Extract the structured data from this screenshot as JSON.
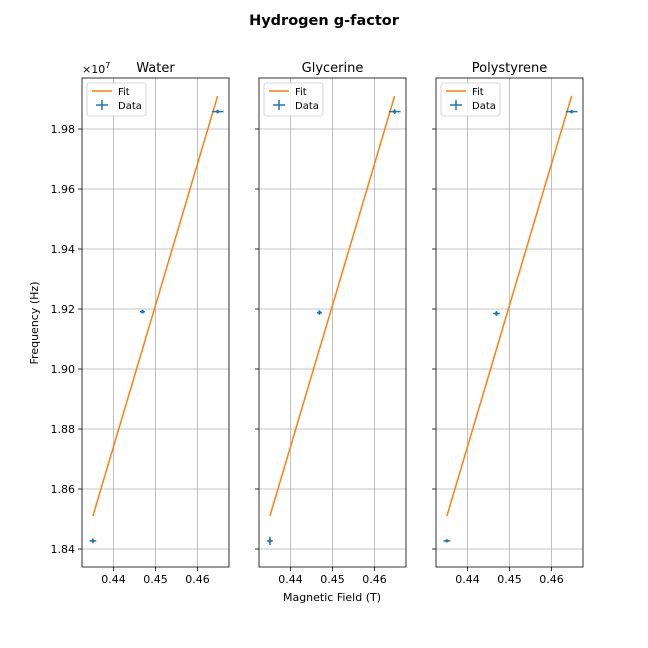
{
  "figure": {
    "suptitle": "Hydrogen g-factor",
    "xlabel": "Magnetic Field (T)",
    "ylabel": "Frequency (Hz)",
    "y_offset_text": "×10",
    "y_offset_exp": "7"
  },
  "colors": {
    "fit": "#ff7f0e",
    "data": "#1f77b4",
    "grid": "#b0b0b0"
  },
  "chart_data": [
    {
      "type": "scatter",
      "title": "Water",
      "xlim": [
        0.4325,
        0.4675
      ],
      "ylim": [
        18340000,
        19970000
      ],
      "xticks": [
        0.44,
        0.45,
        0.46
      ],
      "xtick_labels": [
        "0.44",
        "0.45",
        "0.46"
      ],
      "yticks": [
        18400000,
        18600000,
        18800000,
        19000000,
        19200000,
        19400000,
        19600000,
        19800000
      ],
      "ytick_labels": [
        "1.84",
        "1.86",
        "1.88",
        "1.90",
        "1.92",
        "1.94",
        "1.96",
        "1.98"
      ],
      "grid": true,
      "legend": {
        "position": "top-left",
        "entries": [
          "Fit",
          "Data"
        ]
      },
      "series": [
        {
          "name": "Fit",
          "kind": "line",
          "x": [
            0.4351,
            0.4648
          ],
          "y": [
            18510000,
            19910000
          ]
        },
        {
          "name": "Data",
          "kind": "errorbar",
          "x": [
            0.4351,
            0.4469,
            0.4648
          ],
          "y": [
            18427000,
            19191000,
            19858000
          ],
          "xerr": [
            0.0008,
            0.0006,
            0.0014
          ],
          "yerr": [
            8000,
            6000,
            6000
          ]
        }
      ]
    },
    {
      "type": "scatter",
      "title": "Glycerine",
      "xlim": [
        0.4325,
        0.4675
      ],
      "ylim": [
        18340000,
        19970000
      ],
      "xticks": [
        0.44,
        0.45,
        0.46
      ],
      "xtick_labels": [
        "0.44",
        "0.45",
        "0.46"
      ],
      "yticks": [
        18400000,
        18600000,
        18800000,
        19000000,
        19200000,
        19400000,
        19600000,
        19800000
      ],
      "grid": true,
      "legend": {
        "position": "top-left",
        "entries": [
          "Fit",
          "Data"
        ]
      },
      "series": [
        {
          "name": "Fit",
          "kind": "line",
          "x": [
            0.4351,
            0.4648
          ],
          "y": [
            18510000,
            19910000
          ]
        },
        {
          "name": "Data",
          "kind": "errorbar",
          "x": [
            0.4351,
            0.4469,
            0.4648
          ],
          "y": [
            18427000,
            19188000,
            19858000
          ],
          "xerr": [
            0.0007,
            0.0006,
            0.0014
          ],
          "yerr": [
            14000,
            8000,
            8000
          ]
        }
      ]
    },
    {
      "type": "scatter",
      "title": "Polystyrene",
      "xlim": [
        0.4325,
        0.4675
      ],
      "ylim": [
        18340000,
        19970000
      ],
      "xticks": [
        0.44,
        0.45,
        0.46
      ],
      "xtick_labels": [
        "0.44",
        "0.45",
        "0.46"
      ],
      "yticks": [
        18400000,
        18600000,
        18800000,
        19000000,
        19200000,
        19400000,
        19600000,
        19800000
      ],
      "grid": true,
      "legend": {
        "position": "top-left",
        "entries": [
          "Fit",
          "Data"
        ]
      },
      "series": [
        {
          "name": "Fit",
          "kind": "line",
          "x": [
            0.4351,
            0.4648
          ],
          "y": [
            18510000,
            19910000
          ]
        },
        {
          "name": "Data",
          "kind": "errorbar",
          "x": [
            0.4351,
            0.4469,
            0.4648
          ],
          "y": [
            18427000,
            19185000,
            19858000
          ],
          "xerr": [
            0.0008,
            0.0008,
            0.0014
          ],
          "yerr": [
            4000,
            8000,
            6000
          ]
        }
      ]
    }
  ]
}
